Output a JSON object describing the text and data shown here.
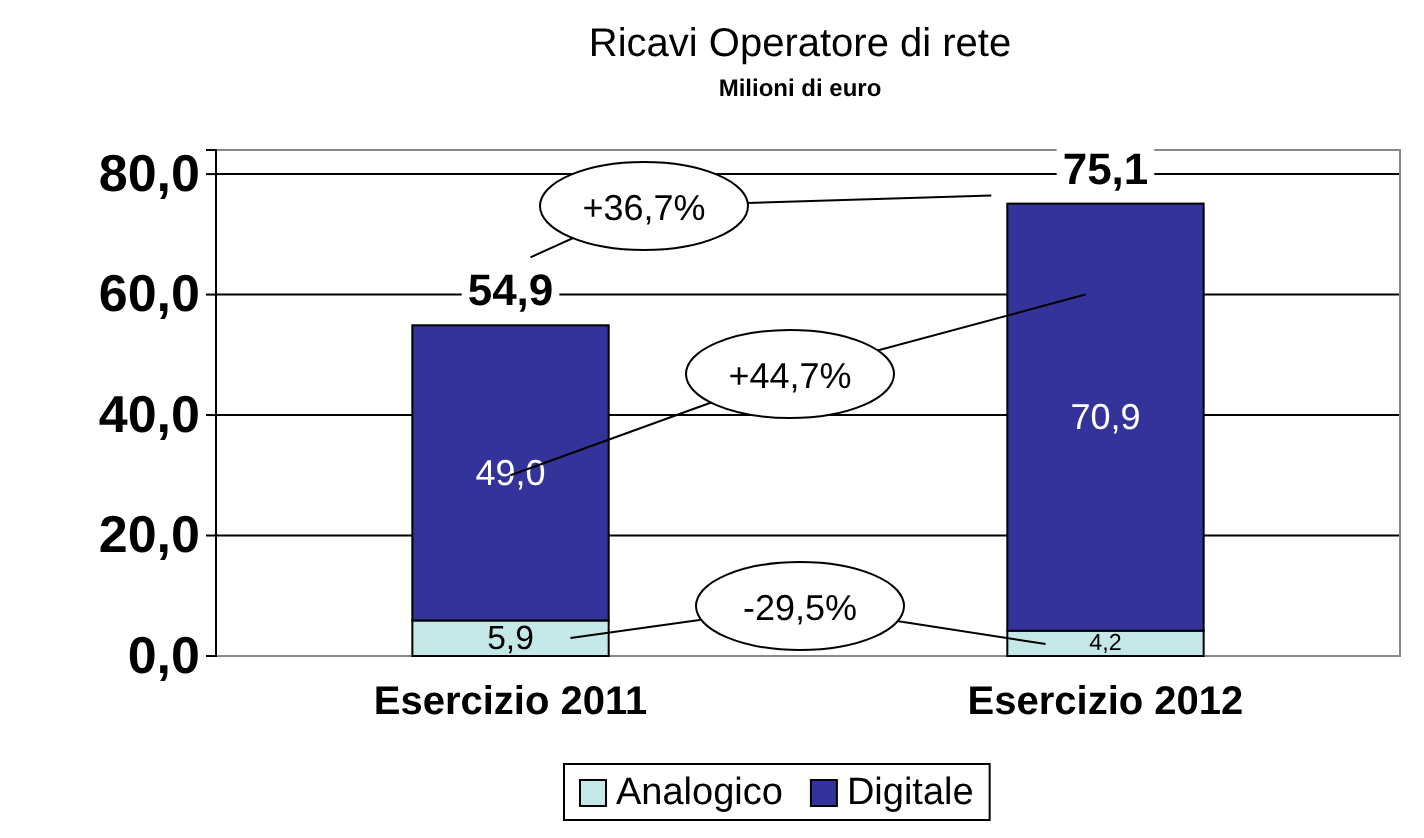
{
  "chart_data": {
    "type": "bar",
    "title": "Ricavi Operatore di rete",
    "subtitle": "Milioni di euro",
    "categories": [
      "Esercizio 2011",
      "Esercizio 2012"
    ],
    "stacked": true,
    "series": [
      {
        "name": "Analogico",
        "color": "#c4e8e8",
        "values": [
          5.9,
          4.2
        ],
        "value_labels": [
          "5,9",
          "4,2"
        ]
      },
      {
        "name": "Digitale",
        "color": "#333399",
        "values": [
          49.0,
          70.9
        ],
        "value_labels": [
          "49,0",
          "70,9"
        ]
      }
    ],
    "totals": [
      "54,9",
      "75,1"
    ],
    "ylim": [
      0,
      84
    ],
    "yticks": [
      {
        "value": 0,
        "label": "0,0"
      },
      {
        "value": 20,
        "label": "20,0"
      },
      {
        "value": 40,
        "label": "40,0"
      },
      {
        "value": 60,
        "label": "60,0"
      },
      {
        "value": 80,
        "label": "80,0"
      }
    ],
    "grid": "y",
    "legend": "bottom",
    "annotations": [
      "+36,7%",
      "+44,7%",
      "-29,5%"
    ]
  }
}
